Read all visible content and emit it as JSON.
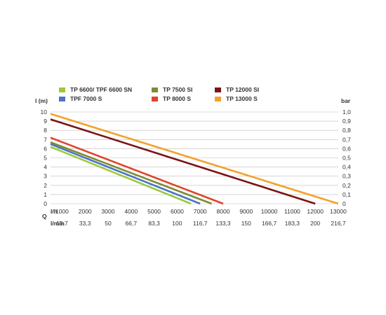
{
  "chart_data": {
    "type": "line",
    "y_left_label": "l (m)",
    "y_right_label": "bar",
    "q_label": "Q",
    "x_unit_label": "l/h",
    "x2_unit_label": "l/min",
    "x_ticks": [
      "1000",
      "2000",
      "3000",
      "4000",
      "5000",
      "6000",
      "7000",
      "8000",
      "9000",
      "10000",
      "11000",
      "12000",
      "13000"
    ],
    "x2_ticks": [
      "16,7",
      "33,3",
      "50",
      "66,7",
      "83,3",
      "100",
      "116,7",
      "133,3",
      "150",
      "166,7",
      "183,3",
      "200",
      "216,7"
    ],
    "y_ticks": [
      "0",
      "1",
      "2",
      "3",
      "4",
      "5",
      "6",
      "7",
      "8",
      "9",
      "10"
    ],
    "y2_ticks": [
      "0",
      "0,1",
      "0,2",
      "0,3",
      "0,4",
      "0,5",
      "0,6",
      "0,7",
      "0,8",
      "0,9",
      "1,0"
    ],
    "xlim": [
      500,
      13000
    ],
    "ylim": [
      0,
      10
    ],
    "grid": "horizontal",
    "legend_position": "top",
    "series": [
      {
        "name": "TP 6600/ TPF 6600 SN",
        "color": "#9dc93b",
        "points": [
          [
            500,
            6.2
          ],
          [
            6600,
            0
          ]
        ]
      },
      {
        "name": "TPF 7000 S",
        "color": "#4a74c9",
        "points": [
          [
            500,
            6.5
          ],
          [
            7000,
            0
          ]
        ]
      },
      {
        "name": "TP 7500 SI",
        "color": "#7d8c33",
        "points": [
          [
            500,
            6.7
          ],
          [
            7500,
            0
          ]
        ]
      },
      {
        "name": "TP 8000 S",
        "color": "#e0442a",
        "points": [
          [
            500,
            7.2
          ],
          [
            8000,
            0
          ]
        ]
      },
      {
        "name": "TP 12000 SI",
        "color": "#7b1414",
        "points": [
          [
            500,
            9.2
          ],
          [
            12000,
            0
          ]
        ]
      },
      {
        "name": "TP 13000 S",
        "color": "#f4a12c",
        "points": [
          [
            500,
            9.8
          ],
          [
            13000,
            0
          ]
        ]
      }
    ]
  }
}
